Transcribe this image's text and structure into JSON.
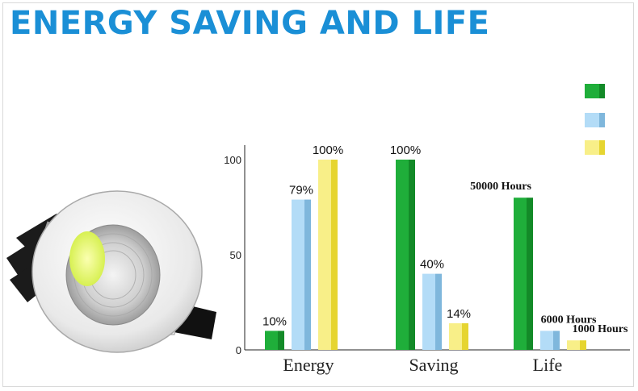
{
  "header": {
    "title": "ENERGY SAVING AND LIFE"
  },
  "colors": {
    "title": "#1a8fd6",
    "green": "#1fae3a",
    "green_shade": "#138a28",
    "blue": "#b3dcf7",
    "blue_shade": "#7fb7dc",
    "yellow": "#f8ef88",
    "yellow_shade": "#e6d530"
  },
  "legend": {
    "items": [
      {
        "color": "#1fae3a",
        "shade": "#138a28"
      },
      {
        "color": "#b3dcf7",
        "shade": "#7fb7dc"
      },
      {
        "color": "#f8ef88",
        "shade": "#e6d530"
      }
    ]
  },
  "chart_data": {
    "type": "bar",
    "categories": [
      "Energy",
      "Saving",
      "Life"
    ],
    "ylim": [
      0,
      100
    ],
    "yticks": [
      0,
      50,
      100
    ],
    "grid": false,
    "legend_position": "top-right",
    "groups": [
      {
        "category": "Energy",
        "bars": [
          {
            "value": 10,
            "label": "10%",
            "color": "#1fae3a",
            "shade": "#138a28"
          },
          {
            "value": 79,
            "label": "79%",
            "color": "#b3dcf7",
            "shade": "#7fb7dc"
          },
          {
            "value": 100,
            "label": "100%",
            "color": "#f8ef88",
            "shade": "#e6d530"
          }
        ]
      },
      {
        "category": "Saving",
        "bars": [
          {
            "value": 100,
            "label": "100%",
            "color": "#1fae3a",
            "shade": "#138a28"
          },
          {
            "value": 40,
            "label": "40%",
            "color": "#b3dcf7",
            "shade": "#7fb7dc"
          },
          {
            "value": 14,
            "label": "14%",
            "color": "#f8ef88",
            "shade": "#e6d530"
          }
        ]
      },
      {
        "category": "Life",
        "bars": [
          {
            "value": 80,
            "label": "50000 Hours",
            "color": "#1fae3a",
            "shade": "#138a28"
          },
          {
            "value": 10,
            "label": "6000 Hours",
            "color": "#b3dcf7",
            "shade": "#7fb7dc"
          },
          {
            "value": 5,
            "label": "1000 Hours",
            "color": "#f8ef88",
            "shade": "#e6d530"
          }
        ]
      }
    ]
  }
}
